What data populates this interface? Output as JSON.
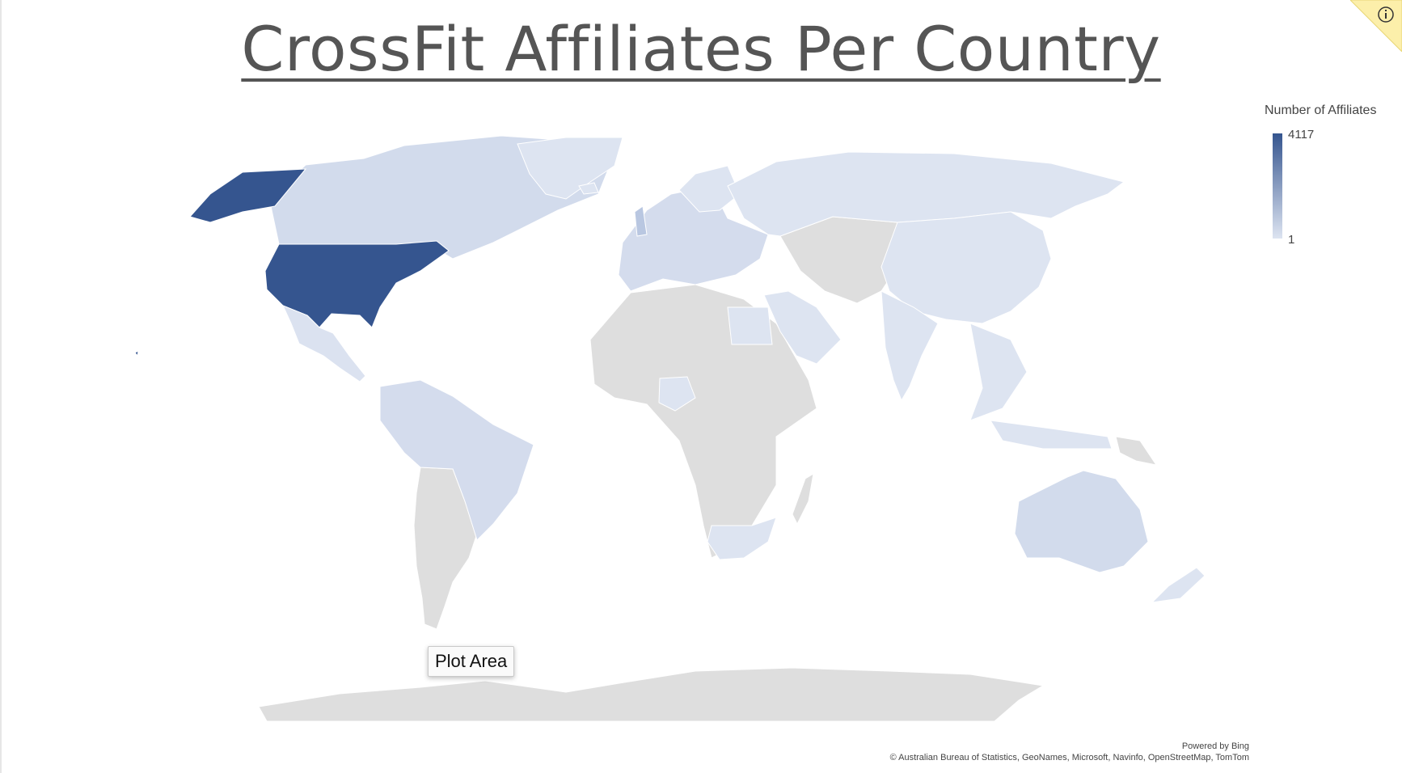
{
  "chart_data": {
    "type": "choropleth-map",
    "title": "CrossFit Affiliates Per Country",
    "legend": {
      "title": "Number of Affiliates",
      "max_label": "4117",
      "min_label": "1",
      "max": 4117,
      "min": 1,
      "color_max": "#35558f",
      "color_min": "#dde4f1",
      "no_data_color": "#dedede"
    },
    "regions": [
      {
        "name": "United States",
        "level": 1.0
      },
      {
        "name": "Canada",
        "level": 0.12
      },
      {
        "name": "Mexico",
        "level": 0.06
      },
      {
        "name": "Brazil",
        "level": 0.1
      },
      {
        "name": "Australia",
        "level": 0.12
      },
      {
        "name": "United Kingdom",
        "level": 0.15
      },
      {
        "name": "France",
        "level": 0.12
      },
      {
        "name": "Spain",
        "level": 0.1
      }
    ]
  },
  "tooltip": "Plot Area",
  "credits": {
    "line1": "Powered by Bing",
    "line2": "© Australian Bureau of Statistics, GeoNames, Microsoft, Navinfo, OpenStreetMap, TomTom"
  },
  "info_icon": "info-icon",
  "colors": {
    "title": "#555555",
    "corner": "#fcefaa"
  }
}
